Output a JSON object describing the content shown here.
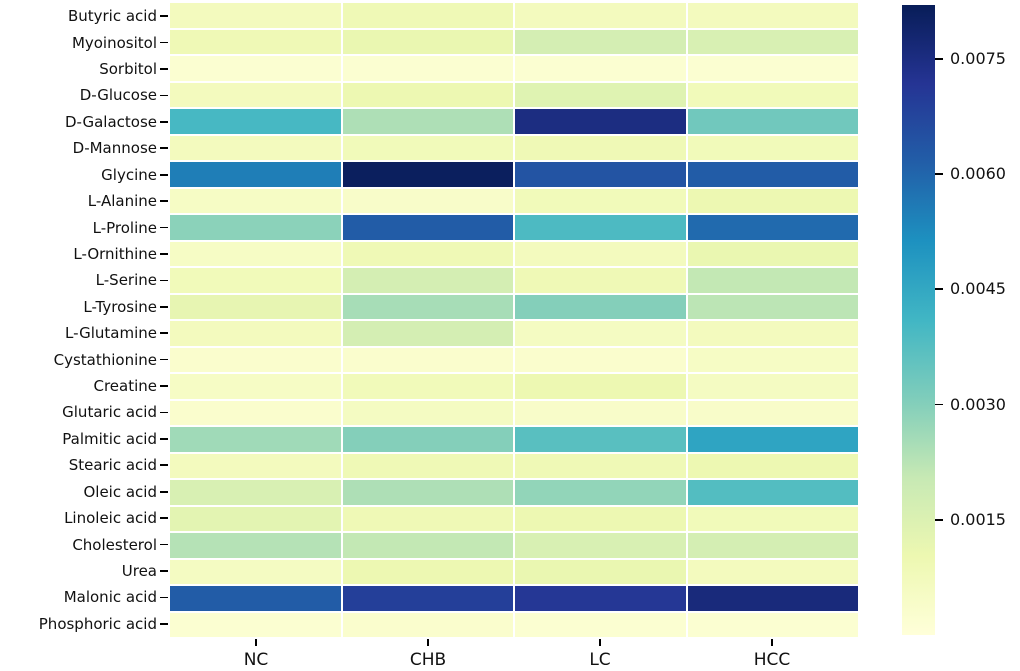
{
  "figure": {
    "background": "#ffffff",
    "text_color": "#111111"
  },
  "chart_data": {
    "type": "heatmap",
    "title": "",
    "xlabel": "",
    "ylabel": "",
    "colormap": "YlGnBu",
    "colormap_stops": [
      "#ffffd9",
      "#edf8b1",
      "#c7e9b4",
      "#7fcdbb",
      "#41b6c4",
      "#1d91c0",
      "#225ea8",
      "#253494",
      "#081d58"
    ],
    "vmin": 0.0,
    "vmax": 0.0082,
    "grid": "white 2px cell separators",
    "legend_position": "right-colorbar",
    "columns": [
      "NC",
      "CHB",
      "LC",
      "HCC"
    ],
    "rows": [
      "Butyric acid",
      "Myoinositol",
      "Sorbitol",
      "D-Glucose",
      "D-Galactose",
      "D-Mannose",
      "Glycine",
      "L-Alanine",
      "L-Proline",
      "L-Ornithine",
      "L-Serine",
      "L-Tyrosine",
      "L-Glutamine",
      "Cystathionine",
      "Creatine",
      "Glutaric acid",
      "Palmitic acid",
      "Stearic acid",
      "Oleic acid",
      "Linoleic acid",
      "Cholesterol",
      "Urea",
      "Malonic acid",
      "Phosphoric acid"
    ],
    "values": [
      [
        0.0007,
        0.0009,
        0.0007,
        0.0007
      ],
      [
        0.0009,
        0.0011,
        0.0017,
        0.0016
      ],
      [
        0.0002,
        0.0002,
        0.0002,
        0.0002
      ],
      [
        0.0007,
        0.001,
        0.0014,
        0.0008
      ],
      [
        0.004,
        0.0024,
        0.0075,
        0.0033
      ],
      [
        0.0007,
        0.0008,
        0.0009,
        0.0008
      ],
      [
        0.0055,
        0.0081,
        0.0064,
        0.0062
      ],
      [
        0.0005,
        0.0004,
        0.0008,
        0.001
      ],
      [
        0.0029,
        0.0062,
        0.0039,
        0.0059
      ],
      [
        0.0005,
        0.0009,
        0.0007,
        0.0011
      ],
      [
        0.0008,
        0.0017,
        0.0009,
        0.0021
      ],
      [
        0.0012,
        0.0025,
        0.003,
        0.0022
      ],
      [
        0.0007,
        0.0017,
        0.0006,
        0.0007
      ],
      [
        0.0003,
        0.0003,
        0.0003,
        0.0005
      ],
      [
        0.0005,
        0.0008,
        0.001,
        0.0006
      ],
      [
        0.0003,
        0.0006,
        0.0004,
        0.0004
      ],
      [
        0.0026,
        0.003,
        0.0037,
        0.0046
      ],
      [
        0.0007,
        0.0009,
        0.0009,
        0.001
      ],
      [
        0.0016,
        0.0024,
        0.0028,
        0.0038
      ],
      [
        0.0013,
        0.0009,
        0.001,
        0.0008
      ],
      [
        0.0023,
        0.0021,
        0.0016,
        0.0017
      ],
      [
        0.0006,
        0.001,
        0.0011,
        0.0007
      ],
      [
        0.0062,
        0.0069,
        0.0071,
        0.0076
      ],
      [
        0.0002,
        0.0003,
        0.0002,
        0.0002
      ]
    ],
    "colorbar_ticks": [
      0.0015,
      0.003,
      0.0045,
      0.006,
      0.0075
    ],
    "colorbar_tick_labels": [
      "0.0015",
      "0.0030",
      "0.0045",
      "0.0060",
      "0.0075"
    ]
  }
}
